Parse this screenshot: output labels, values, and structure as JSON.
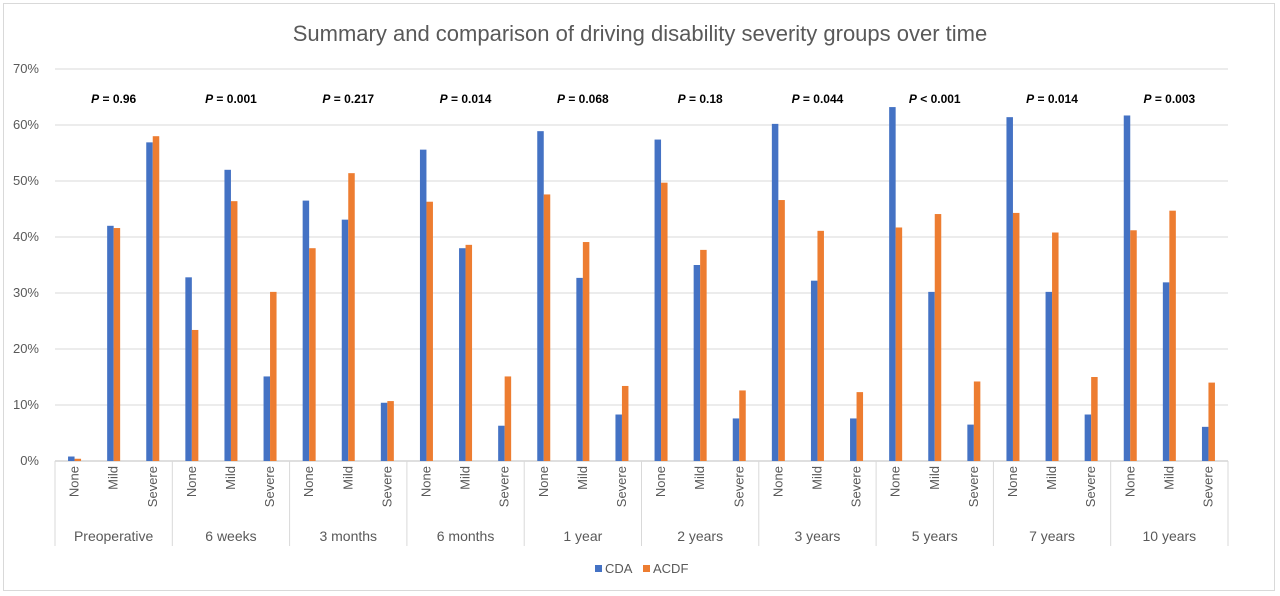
{
  "chart_data": {
    "type": "bar",
    "title": "Summary and comparison of driving disability severity groups over time",
    "ylim": [
      0,
      70
    ],
    "yticks": [
      "0%",
      "10%",
      "20%",
      "30%",
      "40%",
      "50%",
      "60%",
      "70%"
    ],
    "subcategories": [
      "None",
      "Mild",
      "Severe"
    ],
    "legend_position": "bottom",
    "series_colors": {
      "CDA": "#4472c4",
      "ACDF": "#ed7d31"
    },
    "groups": [
      {
        "label": "Preoperative",
        "p_value": "= 0.96",
        "CDA": [
          0.8,
          42.0,
          56.9
        ],
        "ACDF": [
          0.4,
          41.6,
          58.0
        ]
      },
      {
        "label": "6 weeks",
        "p_value": "= 0.001",
        "CDA": [
          32.8,
          52.0,
          15.1
        ],
        "ACDF": [
          23.4,
          46.4,
          30.2
        ]
      },
      {
        "label": "3 months",
        "p_value": "= 0.217",
        "CDA": [
          46.5,
          43.1,
          10.4
        ],
        "ACDF": [
          38.0,
          51.4,
          10.7
        ]
      },
      {
        "label": "6 months",
        "p_value": "= 0.014",
        "CDA": [
          55.6,
          38.0,
          6.3
        ],
        "ACDF": [
          46.3,
          38.6,
          15.1
        ]
      },
      {
        "label": "1 year",
        "p_value": "= 0.068",
        "CDA": [
          58.9,
          32.7,
          8.3
        ],
        "ACDF": [
          47.6,
          39.1,
          13.4
        ]
      },
      {
        "label": "2 years",
        "p_value": "= 0.18",
        "CDA": [
          57.4,
          35.0,
          7.6
        ],
        "ACDF": [
          49.7,
          37.7,
          12.6
        ]
      },
      {
        "label": "3 years",
        "p_value": "= 0.044",
        "CDA": [
          60.2,
          32.2,
          7.6
        ],
        "ACDF": [
          46.6,
          41.1,
          12.3
        ]
      },
      {
        "label": "5 years",
        "p_value": "< 0.001",
        "CDA": [
          63.2,
          30.2,
          6.5
        ],
        "ACDF": [
          41.7,
          44.1,
          14.2
        ]
      },
      {
        "label": "7 years",
        "p_value": "= 0.014",
        "CDA": [
          61.4,
          30.2,
          8.3
        ],
        "ACDF": [
          44.3,
          40.8,
          15.0
        ]
      },
      {
        "label": "10 years",
        "p_value": "= 0.003",
        "CDA": [
          61.7,
          31.9,
          6.1
        ],
        "ACDF": [
          41.2,
          44.7,
          14.0
        ]
      }
    ],
    "p_symbol": "P",
    "series": [
      {
        "name": "CDA"
      },
      {
        "name": "ACDF"
      }
    ]
  }
}
